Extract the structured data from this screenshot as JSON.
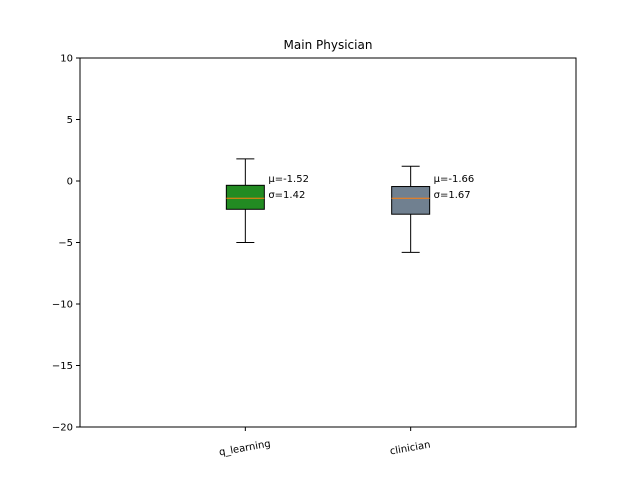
{
  "chart_data": {
    "type": "boxplot",
    "title": "Main Physician",
    "xlabel": "",
    "ylabel": "",
    "ylim": [
      -20,
      10
    ],
    "yticks": [
      10,
      5,
      0,
      -5,
      -10,
      -15,
      -20
    ],
    "ytick_labels": [
      "10",
      "5",
      "0",
      "−5",
      "−10",
      "−15",
      "−20"
    ],
    "categories": [
      "q_learning",
      "clinician"
    ],
    "xtick_rotation_deg": 10,
    "grid": false,
    "legend": "none",
    "boxes": [
      {
        "category": "q_learning",
        "whisker_low": -5.0,
        "q1": -2.3,
        "median": -1.4,
        "q3": -0.35,
        "whisker_high": 1.8,
        "fill": "#228B22",
        "annotation": [
          "μ=-1.52",
          "σ=1.42"
        ]
      },
      {
        "category": "clinician",
        "whisker_low": -5.8,
        "q1": -2.7,
        "median": -1.4,
        "q3": -0.45,
        "whisker_high": 1.2,
        "fill": "#708090",
        "annotation": [
          "μ=-1.66",
          "σ=1.67"
        ]
      }
    ],
    "median_color": "#ff7f0e"
  }
}
